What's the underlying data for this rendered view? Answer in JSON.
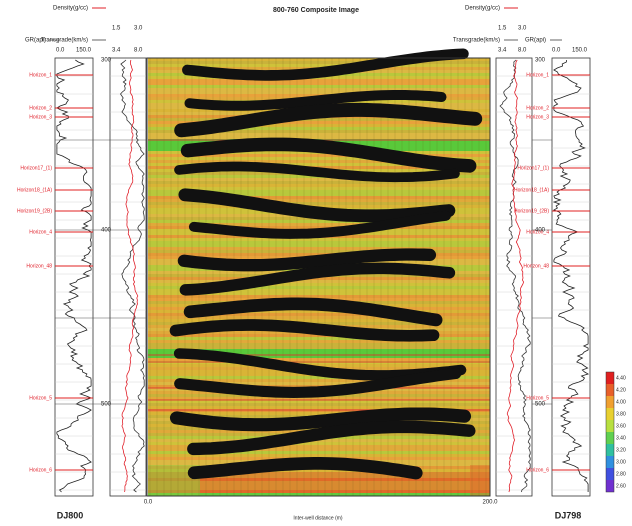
{
  "title": "800-760 Composite Image",
  "left_well": {
    "name": "DJ800",
    "density_header": {
      "label": "Density(g/cc)",
      "min": "1.5",
      "max": "3.0"
    },
    "transit_header": {
      "label": "Transgrade(km/s)",
      "min": "3.4",
      "max": "8.0"
    },
    "gr_header": {
      "label": "GR(api)",
      "min": "0.0",
      "max": "150.0"
    },
    "depth_ticks": [
      "300",
      "400",
      "500"
    ],
    "horizons": [
      "Horizon_1",
      "Horizon_2",
      "Horizon_3",
      "Horizon17_(1)",
      "Horizon18_(1A)",
      "Horizon19_(2B)",
      "Horizon_4",
      "Horizon_48",
      "Horizon_5",
      "Horizon_6"
    ]
  },
  "right_well": {
    "name": "DJ798",
    "density_header": {
      "label": "Density(g/cc)",
      "min": "1.5",
      "max": "3.0"
    },
    "transit_header": {
      "label": "Transgrade(km/s)",
      "min": "3.4",
      "max": "8.0"
    },
    "gr_header": {
      "label": "GR(api)",
      "min": "0.0",
      "max": "150.0"
    },
    "depth_ticks": [
      "300",
      "400",
      "500"
    ],
    "horizons": [
      "Horizon_1",
      "Horizon_2",
      "Horizon_3",
      "Horizon17_(1)",
      "Horizon18_(1A)",
      "Horizon19_(2B)",
      "Horizon_4",
      "Horizon_48",
      "Horizon_5",
      "Horizon_6"
    ]
  },
  "section": {
    "x_start": "0.0",
    "x_end": "200.0",
    "x_label": "Inter-well distance (m)"
  },
  "colorbar": {
    "ticks": [
      "4.40",
      "4.20",
      "4.00",
      "3.80",
      "3.60",
      "3.40",
      "3.20",
      "3.00",
      "2.80",
      "2.60"
    ]
  }
}
